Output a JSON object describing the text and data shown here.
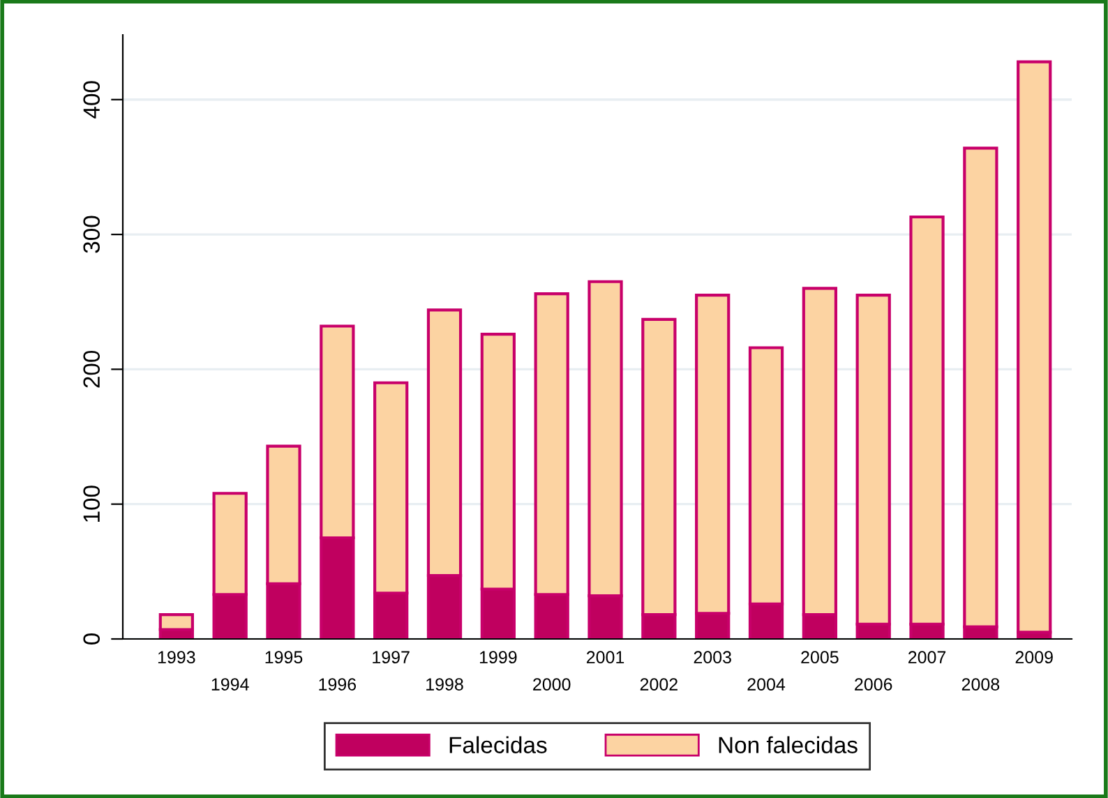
{
  "chart_data": {
    "type": "bar",
    "stacked": true,
    "categories": [
      "1993",
      "1994",
      "1995",
      "1996",
      "1997",
      "1998",
      "1999",
      "2000",
      "2001",
      "2002",
      "2003",
      "2004",
      "2005",
      "2006",
      "2007",
      "2008",
      "2009"
    ],
    "series": [
      {
        "name": "Falecidas",
        "color": "#c0005f",
        "values": [
          7,
          33,
          41,
          75,
          34,
          47,
          37,
          33,
          32,
          18,
          19,
          26,
          18,
          11,
          11,
          9,
          5
        ]
      },
      {
        "name": "Non falecidas",
        "color": "#fcd3a2",
        "values": [
          11,
          75,
          102,
          157,
          156,
          197,
          189,
          223,
          233,
          219,
          236,
          190,
          242,
          244,
          302,
          355,
          423
        ]
      }
    ],
    "ylim": [
      0,
      448
    ],
    "yticks": [
      0,
      100,
      200,
      300,
      400
    ],
    "grid": "y",
    "legend": "bottom"
  }
}
